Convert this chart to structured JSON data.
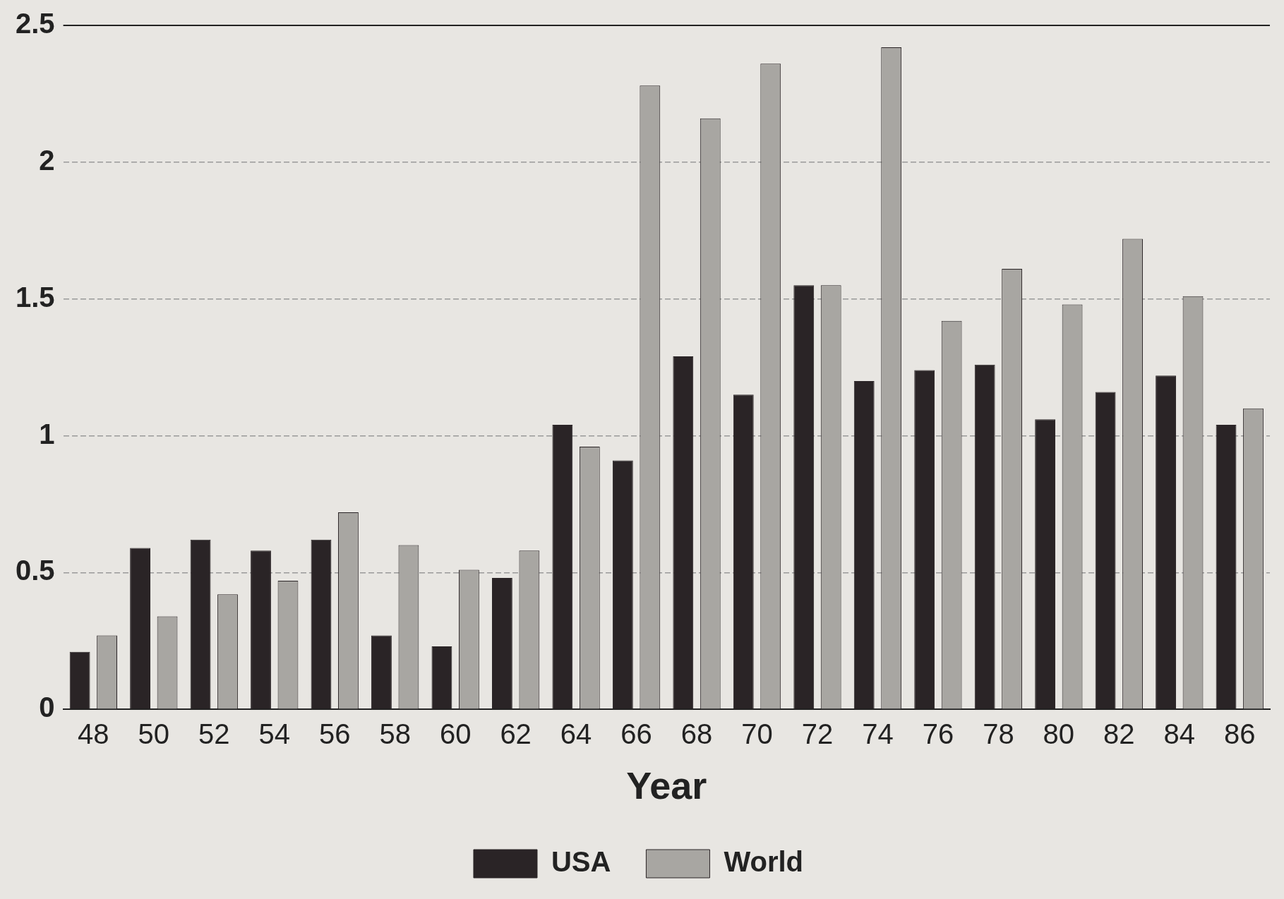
{
  "chart_data": {
    "type": "bar",
    "xlabel": "Year",
    "categories": [
      "48",
      "50",
      "52",
      "54",
      "56",
      "58",
      "60",
      "62",
      "64",
      "66",
      "68",
      "70",
      "72",
      "74",
      "76",
      "78",
      "80",
      "82",
      "84",
      "86"
    ],
    "series": [
      {
        "name": "USA",
        "color": "#2a2426",
        "values": [
          0.21,
          0.59,
          0.62,
          0.58,
          0.62,
          0.27,
          0.23,
          0.48,
          1.04,
          0.91,
          1.29,
          1.15,
          1.55,
          1.2,
          1.24,
          1.26,
          1.06,
          1.16,
          1.22,
          1.04
        ]
      },
      {
        "name": "World",
        "color": "#a8a6a2",
        "values": [
          0.27,
          0.34,
          0.42,
          0.47,
          0.72,
          0.6,
          0.51,
          0.58,
          0.96,
          2.28,
          2.16,
          2.36,
          1.55,
          2.42,
          1.42,
          1.61,
          1.48,
          1.72,
          1.51,
          1.1
        ]
      }
    ],
    "ylim": [
      0,
      2.5
    ],
    "yticks": [
      0,
      0.5,
      1,
      1.5,
      2,
      2.5
    ],
    "grid": "y",
    "legend": "bottom"
  }
}
